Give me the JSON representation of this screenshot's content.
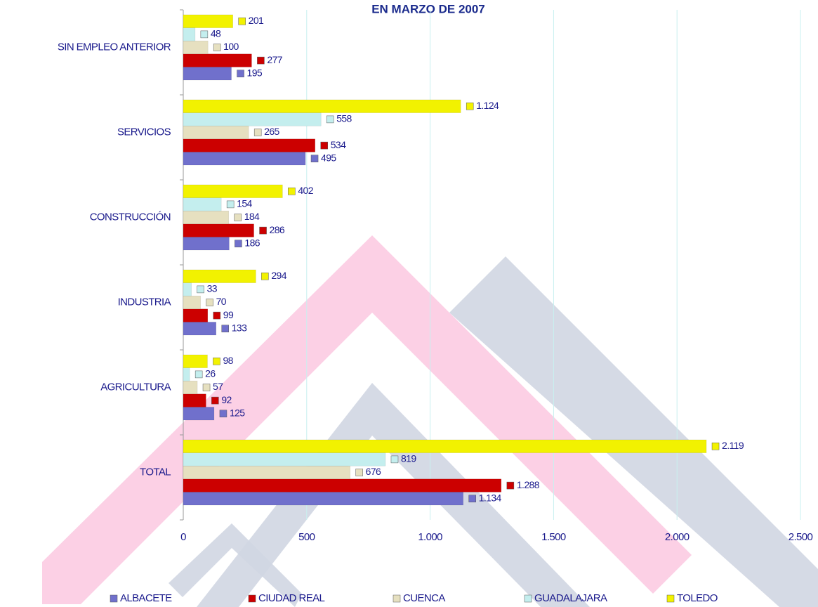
{
  "chart_data": {
    "type": "bar",
    "orientation": "horizontal",
    "title": "EN MARZO DE 2007",
    "categories": [
      "SIN EMPLEO ANTERIOR",
      "SERVICIOS",
      "CONSTRUCCIÓN",
      "INDUSTRIA",
      "AGRICULTURA",
      "TOTAL"
    ],
    "series": [
      {
        "name": "ALBACETE",
        "color": "#7070cc",
        "values": [
          195,
          495,
          186,
          133,
          125,
          1134
        ],
        "value_labels": [
          "195",
          "495",
          "186",
          "133",
          "125",
          "1.134"
        ]
      },
      {
        "name": "CIUDAD REAL",
        "color": "#cc0000",
        "values": [
          277,
          534,
          286,
          99,
          92,
          1288
        ],
        "value_labels": [
          "277",
          "534",
          "286",
          "99",
          "92",
          "1.288"
        ]
      },
      {
        "name": "CUENCA",
        "color": "#e6e0c0",
        "values": [
          100,
          265,
          184,
          70,
          57,
          676
        ],
        "value_labels": [
          "100",
          "265",
          "184",
          "70",
          "57",
          "676"
        ]
      },
      {
        "name": "GUADALAJARA",
        "color": "#c4eeee",
        "values": [
          48,
          558,
          154,
          33,
          26,
          819
        ],
        "value_labels": [
          "48",
          "558",
          "154",
          "33",
          "26",
          "819"
        ]
      },
      {
        "name": "TOLEDO",
        "color": "#f2f200",
        "values": [
          201,
          1124,
          402,
          294,
          98,
          2119
        ],
        "value_labels": [
          "201",
          "1.124",
          "402",
          "294",
          "98",
          "2.119"
        ]
      }
    ],
    "xlim": [
      0,
      2500
    ],
    "xticks": [
      0,
      500,
      {
        "value": 1000,
        "label": "1.000"
      },
      {
        "value": 1500,
        "label": "1.500"
      },
      {
        "value": 2000,
        "label": "2.000"
      },
      {
        "value": 2500,
        "label": "2.500"
      }
    ],
    "grid": true,
    "legend": "bottom"
  }
}
